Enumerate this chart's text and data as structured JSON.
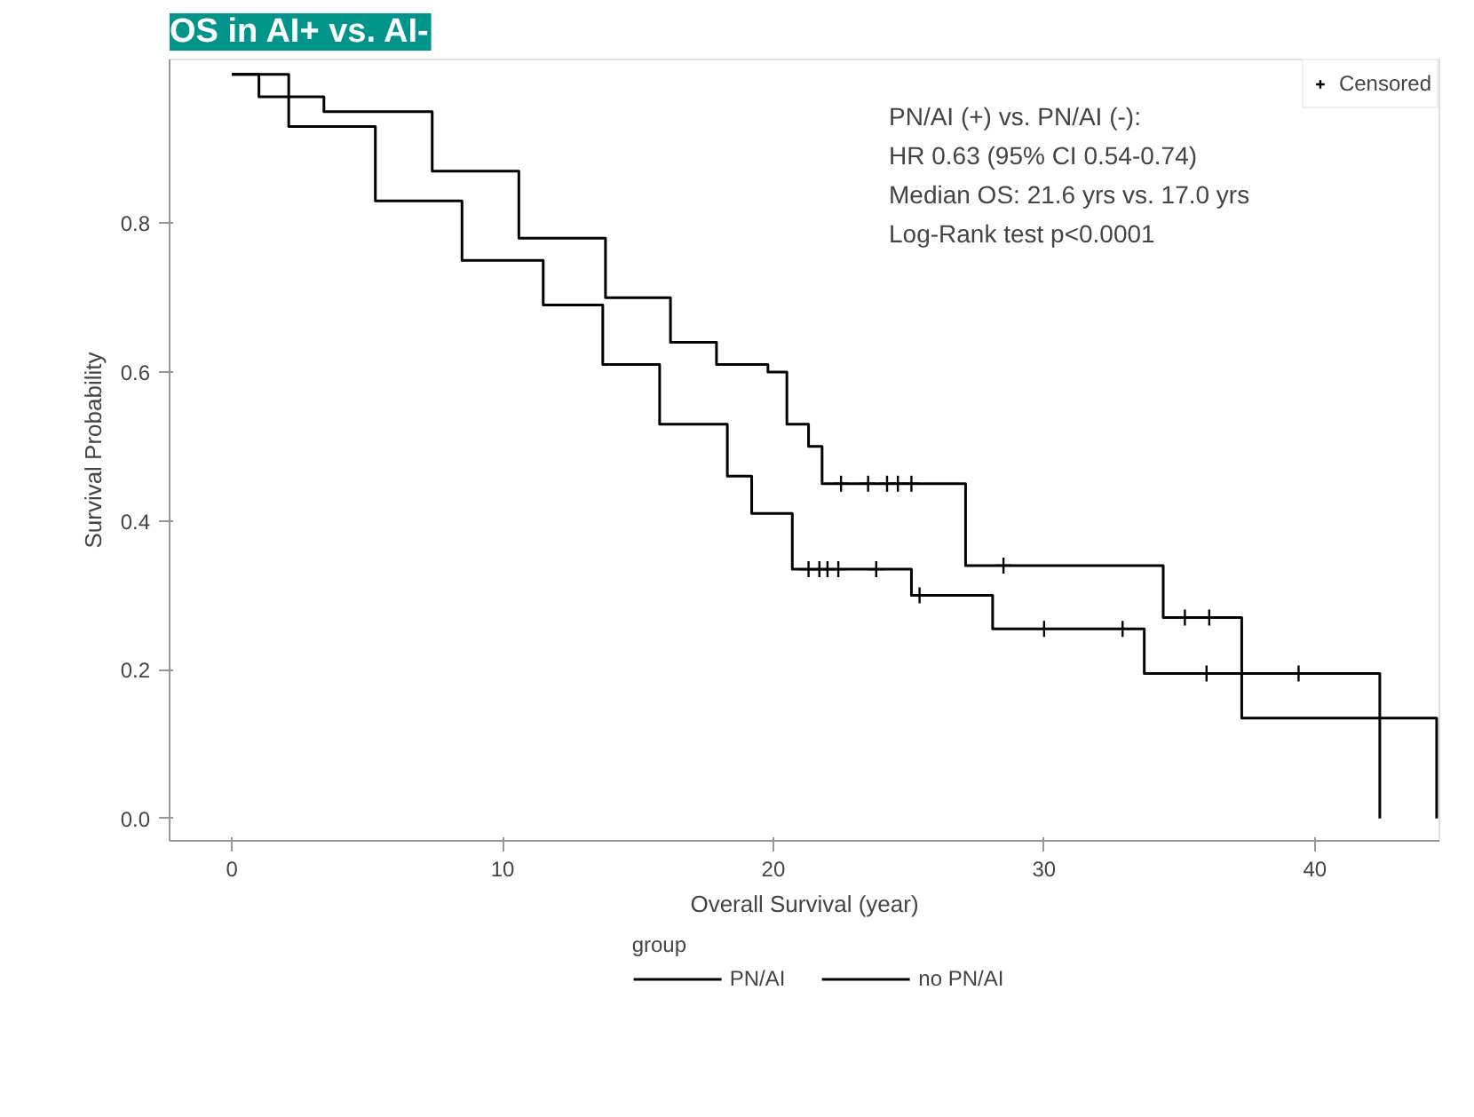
{
  "chart_data": {
    "type": "step",
    "title": "OS in AI+ vs. AI-",
    "xlabel": "Overall Survival (year)",
    "ylabel": "Survival Probability",
    "legend_title": "group",
    "annotations": [
      "PN/AI (+) vs. PN/AI (-):",
      "HR 0.63 (95% CI 0.54-0.74)",
      "Median OS: 21.6 yrs vs. 17.0 yrs",
      "Log-Rank test p<0.0001"
    ],
    "xlim": [
      -2.3,
      44.6
    ],
    "ylim": [
      -0.03,
      1.02
    ],
    "xticks": [
      0,
      10,
      20,
      30,
      40
    ],
    "yticks": [
      {
        "value": 0,
        "label": "0.0"
      },
      {
        "value": 0.2,
        "label": "0.2"
      },
      {
        "value": 0.4,
        "label": "0.4"
      },
      {
        "value": 0.6,
        "label": "0.6"
      },
      {
        "value": 0.8,
        "label": "0.8"
      }
    ],
    "grid": false,
    "legend": "bottom",
    "series": [
      {
        "name": "PN/AI",
        "color": "#000000",
        "x": [
          0,
          1.0,
          3.4,
          7.4,
          10.6,
          13.8,
          16.2,
          17.9,
          19.8,
          20.5,
          21.3,
          21.8,
          27.1,
          34.4,
          37.3,
          44.5
        ],
        "values": [
          1.0,
          0.97,
          0.95,
          0.87,
          0.78,
          0.7,
          0.64,
          0.61,
          0.6,
          0.53,
          0.5,
          0.45,
          0.34,
          0.27,
          0.135,
          0
        ]
      },
      {
        "name": "no PN/AI",
        "color": "#000000",
        "x": [
          0,
          2.1,
          5.3,
          8.5,
          11.5,
          13.7,
          15.8,
          18.3,
          19.2,
          20.7,
          25.1,
          28.1,
          33.7,
          42.4
        ],
        "values": [
          1.0,
          0.93,
          0.83,
          0.75,
          0.69,
          0.61,
          0.53,
          0.46,
          0.41,
          0.335,
          0.3,
          0.255,
          0.195,
          0
        ]
      },
      {
        "name": "Censored",
        "type": "scatter",
        "marker": "cross",
        "color": "#000000",
        "x": [
          22.5,
          23.5,
          24.2,
          24.6,
          25.1,
          28.5,
          35.2,
          36.1,
          21.3,
          21.7,
          22.0,
          22.4,
          23.8,
          25.4,
          30.0,
          32.9,
          36.0,
          39.4
        ],
        "values": [
          0.45,
          0.45,
          0.45,
          0.45,
          0.45,
          0.34,
          0.27,
          0.27,
          0.335,
          0.335,
          0.335,
          0.335,
          0.335,
          0.3,
          0.255,
          0.255,
          0.195,
          0.195
        ]
      }
    ]
  }
}
